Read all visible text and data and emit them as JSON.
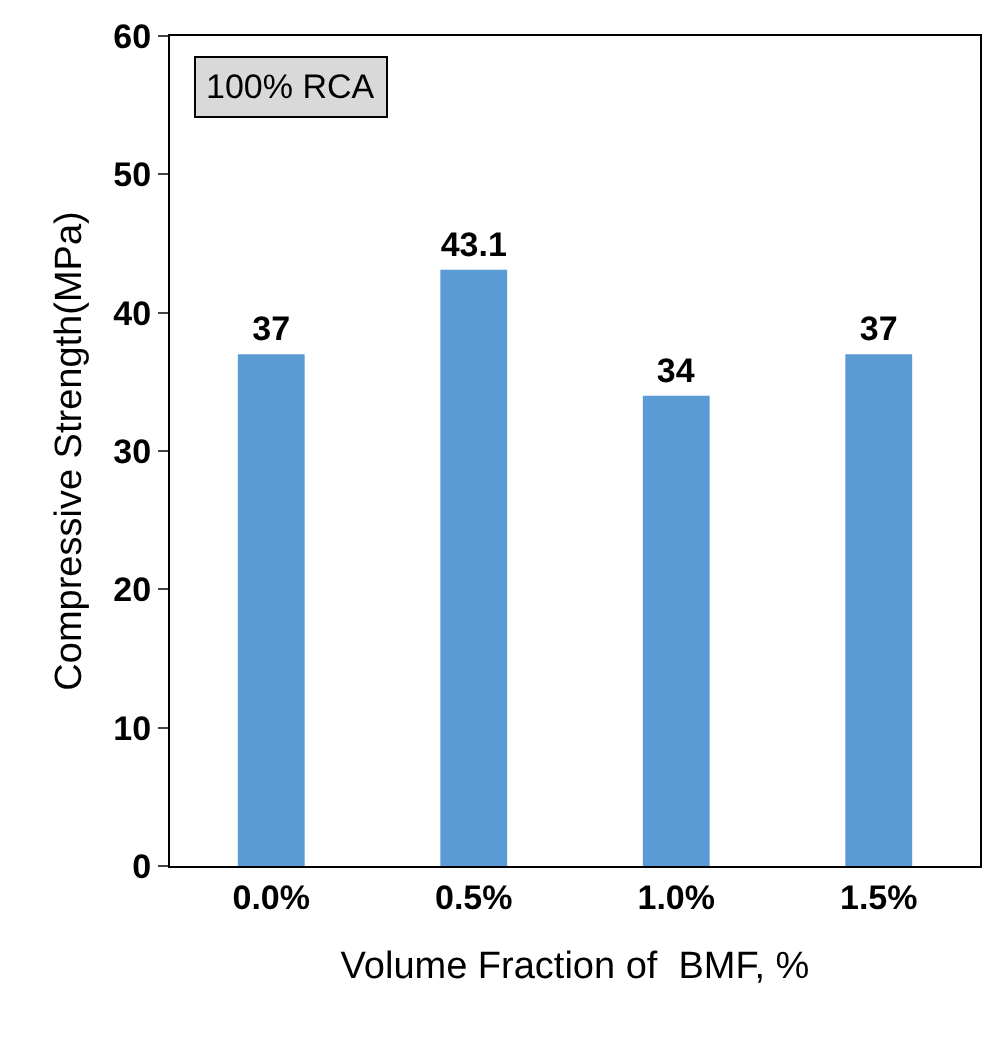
{
  "chart_data": {
    "type": "bar",
    "xlabel": "Volume Fraction of  BMF, %",
    "ylabel": "Compressive Strength(MPa)",
    "annotations": [
      "100% RCA"
    ],
    "categories": [
      "0.0%",
      "0.5%",
      "1.0%",
      "1.5%"
    ],
    "values": [
      37,
      43.1,
      34,
      37
    ],
    "color": "#5b9bd5",
    "ylim": [
      0,
      60
    ],
    "yticks": [
      0,
      10,
      20,
      30,
      40,
      50,
      60
    ],
    "data_labels": true,
    "grid": false
  }
}
